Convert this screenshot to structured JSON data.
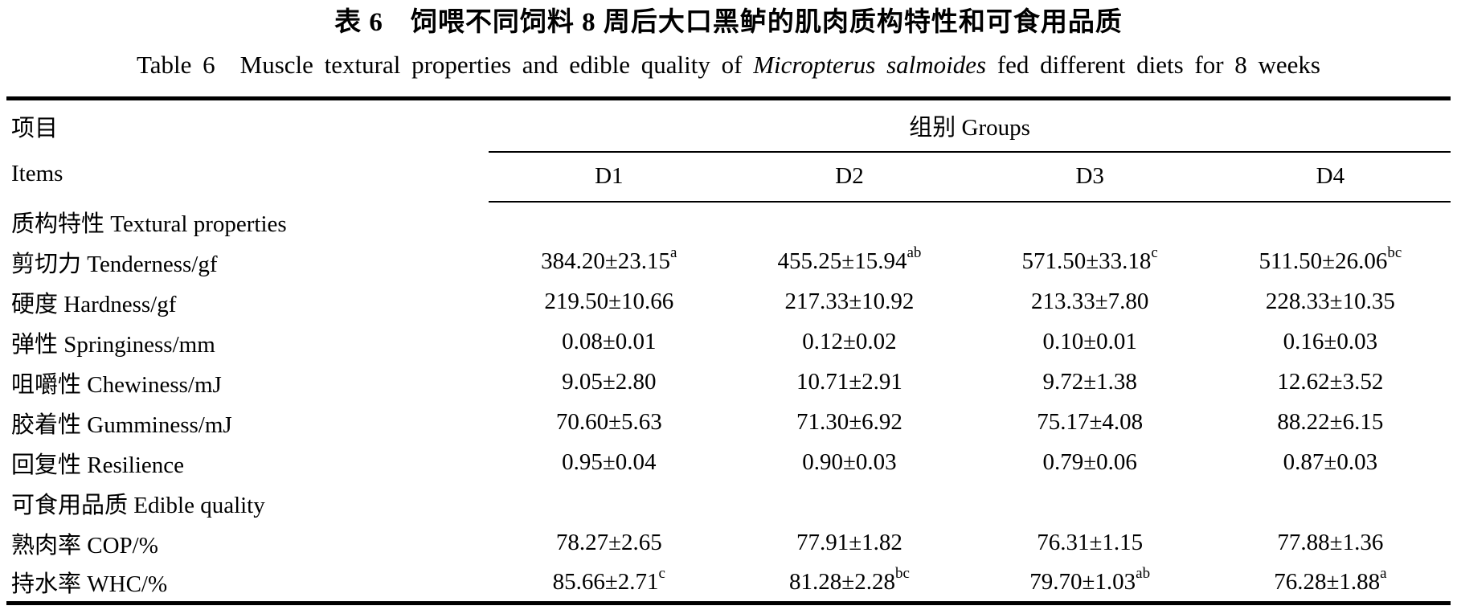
{
  "colors": {
    "text": "#000000",
    "background": "#ffffff",
    "rule": "#000000"
  },
  "titles": {
    "zh": "表 6　饲喂不同饲料 8 周后大口黑鲈的肌肉质构特性和可食用品质",
    "en_prefix": "Table 6　Muscle textural properties and edible quality of ",
    "en_species_italic": "Micropterus salmoides",
    "en_suffix": " fed different diets for 8 weeks"
  },
  "table": {
    "header": {
      "items_zh": "项目",
      "items_en": "Items",
      "groups_label": "组别 Groups",
      "columns": [
        "D1",
        "D2",
        "D3",
        "D4"
      ]
    },
    "rows": [
      {
        "type": "section",
        "label": "质构特性 Textural properties"
      },
      {
        "type": "data",
        "label": "剪切力 Tenderness/gf",
        "values": [
          {
            "text": "384.20±23.15",
            "sup": "a"
          },
          {
            "text": "455.25±15.94",
            "sup": "ab"
          },
          {
            "text": "571.50±33.18",
            "sup": "c"
          },
          {
            "text": "511.50±26.06",
            "sup": "bc"
          }
        ]
      },
      {
        "type": "data",
        "label": "硬度 Hardness/gf",
        "values": [
          {
            "text": "219.50±10.66",
            "sup": ""
          },
          {
            "text": "217.33±10.92",
            "sup": ""
          },
          {
            "text": "213.33±7.80",
            "sup": ""
          },
          {
            "text": "228.33±10.35",
            "sup": ""
          }
        ]
      },
      {
        "type": "data",
        "label": "弹性 Springiness/mm",
        "values": [
          {
            "text": "0.08±0.01",
            "sup": ""
          },
          {
            "text": "0.12±0.02",
            "sup": ""
          },
          {
            "text": "0.10±0.01",
            "sup": ""
          },
          {
            "text": "0.16±0.03",
            "sup": ""
          }
        ]
      },
      {
        "type": "data",
        "label": "咀嚼性 Chewiness/mJ",
        "values": [
          {
            "text": "9.05±2.80",
            "sup": ""
          },
          {
            "text": "10.71±2.91",
            "sup": ""
          },
          {
            "text": "9.72±1.38",
            "sup": ""
          },
          {
            "text": "12.62±3.52",
            "sup": ""
          }
        ]
      },
      {
        "type": "data",
        "label": "胶着性 Gumminess/mJ",
        "values": [
          {
            "text": "70.60±5.63",
            "sup": ""
          },
          {
            "text": "71.30±6.92",
            "sup": ""
          },
          {
            "text": "75.17±4.08",
            "sup": ""
          },
          {
            "text": "88.22±6.15",
            "sup": ""
          }
        ]
      },
      {
        "type": "data",
        "label": "回复性 Resilience",
        "values": [
          {
            "text": "0.95±0.04",
            "sup": ""
          },
          {
            "text": "0.90±0.03",
            "sup": ""
          },
          {
            "text": "0.79±0.06",
            "sup": ""
          },
          {
            "text": "0.87±0.03",
            "sup": ""
          }
        ]
      },
      {
        "type": "section",
        "label": "可食用品质 Edible quality"
      },
      {
        "type": "data",
        "label": "熟肉率 COP/%",
        "values": [
          {
            "text": "78.27±2.65",
            "sup": ""
          },
          {
            "text": "77.91±1.82",
            "sup": ""
          },
          {
            "text": "76.31±1.15",
            "sup": ""
          },
          {
            "text": "77.88±1.36",
            "sup": ""
          }
        ]
      },
      {
        "type": "data",
        "label": "持水率 WHC/%",
        "values": [
          {
            "text": "85.66±2.71",
            "sup": "c"
          },
          {
            "text": "81.28±2.28",
            "sup": "bc"
          },
          {
            "text": "79.70±1.03",
            "sup": "ab"
          },
          {
            "text": "76.28±1.88",
            "sup": "a"
          }
        ]
      }
    ]
  }
}
